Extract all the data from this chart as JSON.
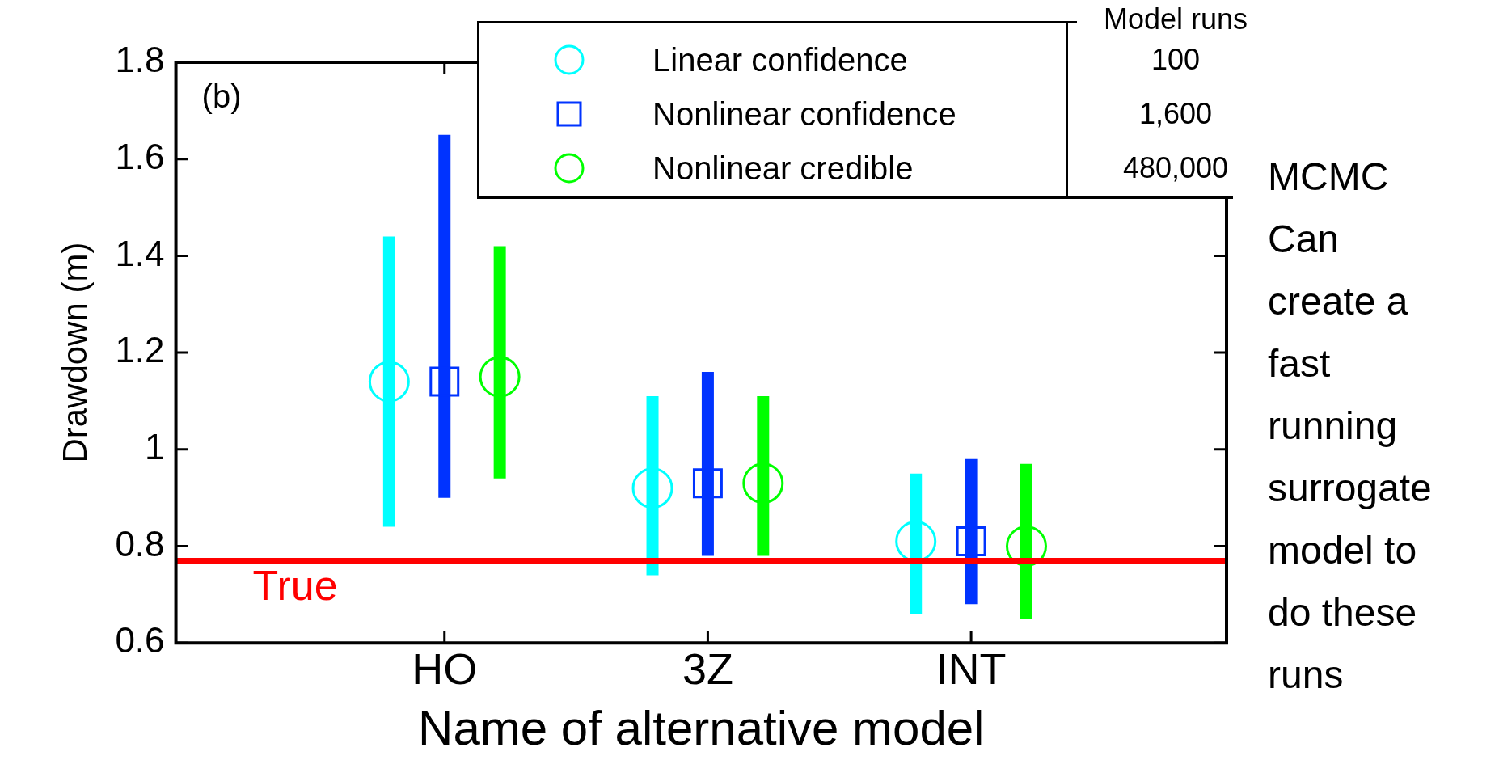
{
  "chart_data": {
    "type": "scatter",
    "categories": [
      "HO",
      "3Z",
      "INT"
    ],
    "xlabel": "Name of alternative model",
    "ylabel": "Drawdown (m)",
    "ylim": [
      0.6,
      1.8
    ],
    "yticks": [
      0.6,
      0.8,
      1,
      1.2,
      1.4,
      1.6,
      1.8
    ],
    "series": [
      {
        "name": "Linear confidence",
        "color": "#00ffff",
        "marker": "circle",
        "values": [
          1.14,
          0.92,
          0.81
        ],
        "errors": [
          [
            0.84,
            1.44
          ],
          [
            0.74,
            1.11
          ],
          [
            0.66,
            0.95
          ]
        ]
      },
      {
        "name": "Nonlinear confidence",
        "color": "#0033ff",
        "marker": "square",
        "values": [
          1.14,
          0.93,
          0.81
        ],
        "errors": [
          [
            0.9,
            1.65
          ],
          [
            0.78,
            1.16
          ],
          [
            0.68,
            0.98
          ]
        ]
      },
      {
        "name": "Nonlinear credible",
        "color": "#00ff00",
        "marker": "circle",
        "values": [
          1.15,
          0.93,
          0.8
        ],
        "errors": [
          [
            0.94,
            1.42
          ],
          [
            0.78,
            1.11
          ],
          [
            0.65,
            0.97
          ]
        ]
      }
    ],
    "ref_lines": [
      {
        "axis": "y",
        "value": 0.77,
        "label": "True",
        "color": "#ff0000"
      }
    ],
    "legend": "top right",
    "grid": false,
    "annotations": [
      "(b)",
      "Model runs",
      "100",
      "1,600",
      "480,000",
      "MCMC Can create a fast running surrogate model to do these runs"
    ]
  }
}
